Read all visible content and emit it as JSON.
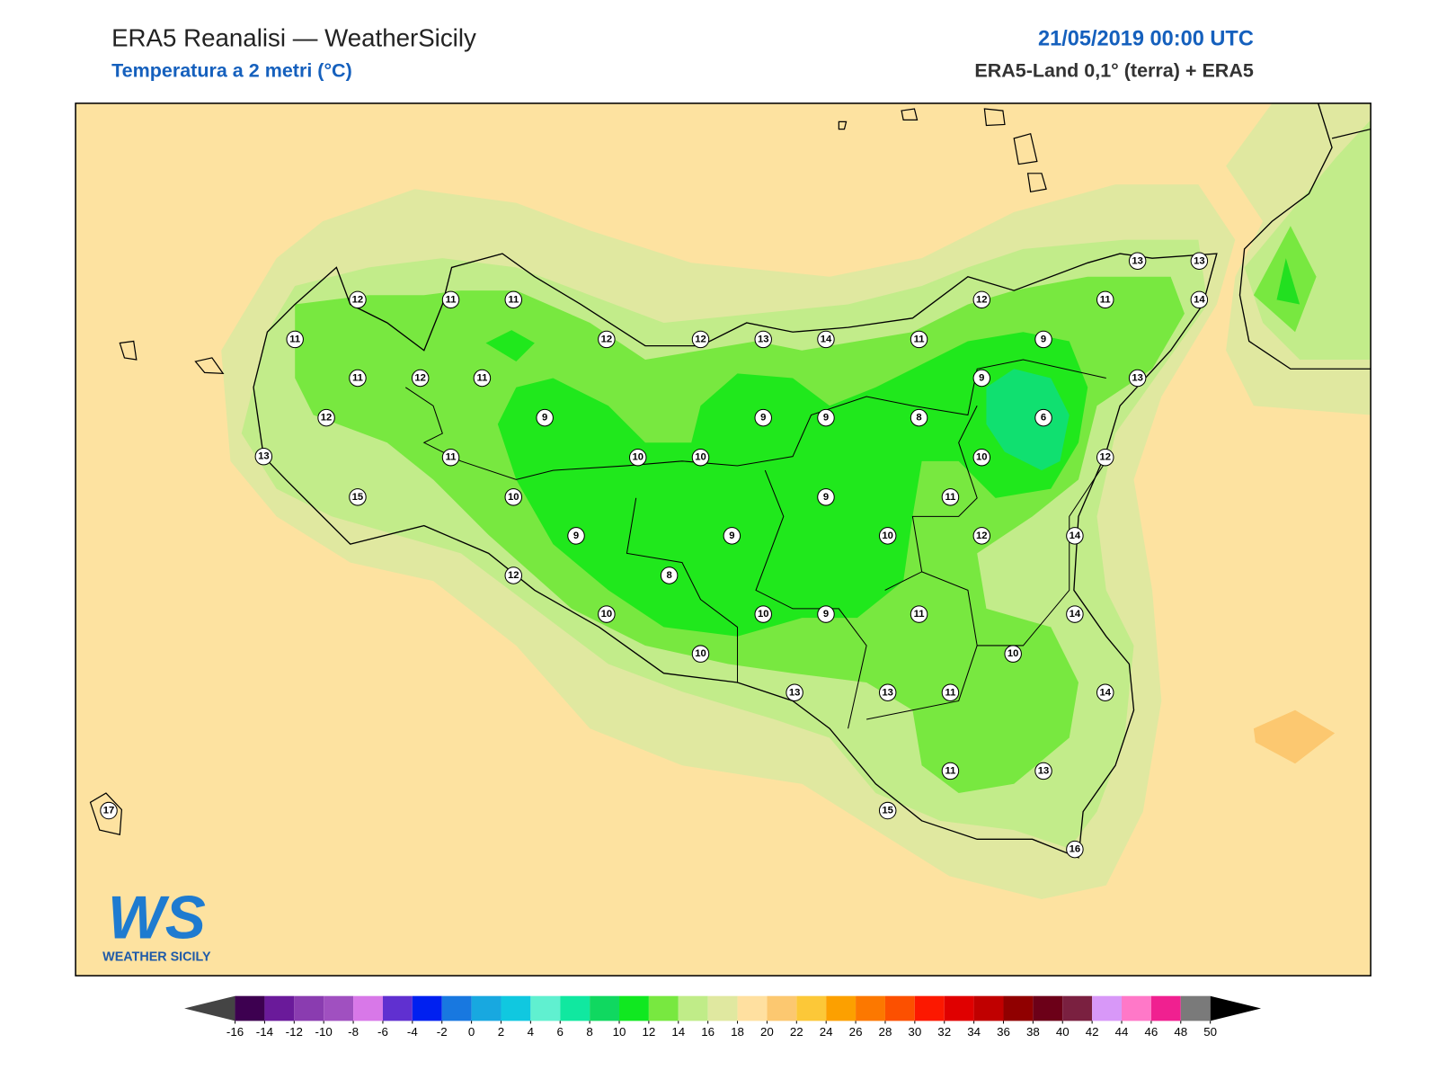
{
  "header": {
    "title": "ERA5 Reanalisi — WeatherSicily",
    "subtitle": "Temperatura a 2 metri (°C)",
    "date": "21/05/2019 00:00 UTC",
    "source": "ERA5-Land 0,1° (terra) + ERA5"
  },
  "stations": [
    12,
    11,
    11,
    11,
    11,
    12,
    11,
    12,
    13,
    15,
    11,
    10,
    9,
    12,
    12,
    13,
    14,
    11,
    12,
    11,
    13,
    13,
    14,
    9,
    9,
    13,
    9,
    9,
    8,
    6,
    10,
    10,
    10,
    12,
    9,
    11,
    9,
    9,
    10,
    12,
    14,
    12,
    8,
    10,
    10,
    9,
    11,
    14,
    10,
    10,
    13,
    13,
    11,
    14,
    11,
    13,
    15,
    16,
    17
  ],
  "colorbar": {
    "ticks": [
      -16,
      -14,
      -12,
      -10,
      -8,
      -6,
      -4,
      -2,
      0,
      2,
      4,
      6,
      8,
      10,
      12,
      14,
      16,
      18,
      20,
      22,
      24,
      26,
      28,
      30,
      32,
      34,
      36,
      38,
      40,
      42,
      44,
      46,
      48,
      50
    ],
    "colors": [
      "#3d0050",
      "#6a1a9a",
      "#8a3cb0",
      "#a050c0",
      "#d878e8",
      "#6030d0",
      "#0020f0",
      "#1878e0",
      "#18a8e0",
      "#10c8e0",
      "#60f0d0",
      "#10e8a0",
      "#10d860",
      "#10e820",
      "#78e840",
      "#c0ec88",
      "#e0e8a0",
      "#ffe0a0",
      "#fcc870",
      "#fcc838",
      "#fca000",
      "#fc7800",
      "#fc5000",
      "#fc1800",
      "#e00000",
      "#c00000",
      "#900000",
      "#6c0018",
      "#7a2040",
      "#d898f8",
      "#ff78c8",
      "#f02090",
      "#7a7a7a"
    ],
    "under_color": "#444444",
    "over_color": "#000000"
  },
  "logo": {
    "mark": "WS",
    "name": "WEATHER SICILY"
  }
}
